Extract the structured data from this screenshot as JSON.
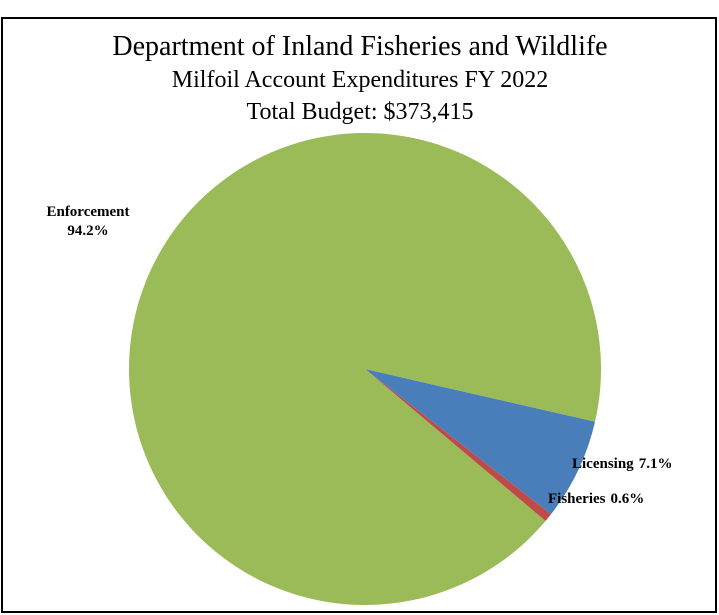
{
  "chart_data": {
    "type": "pie",
    "title": "Department of Inland Fisheries and Wildlife",
    "subtitle": "Milfoil Account Expenditures FY 2022",
    "annotation": "Total Budget:  $373,415",
    "categories": [
      "Licensing",
      "Fisheries",
      "Enforcement"
    ],
    "values": [
      7.1,
      0.6,
      94.2
    ],
    "value_labels": [
      "7.1%",
      "0.6%",
      "94.2%"
    ],
    "colors": [
      "#4a7ebb",
      "#be4b48",
      "#9bbb59"
    ]
  }
}
